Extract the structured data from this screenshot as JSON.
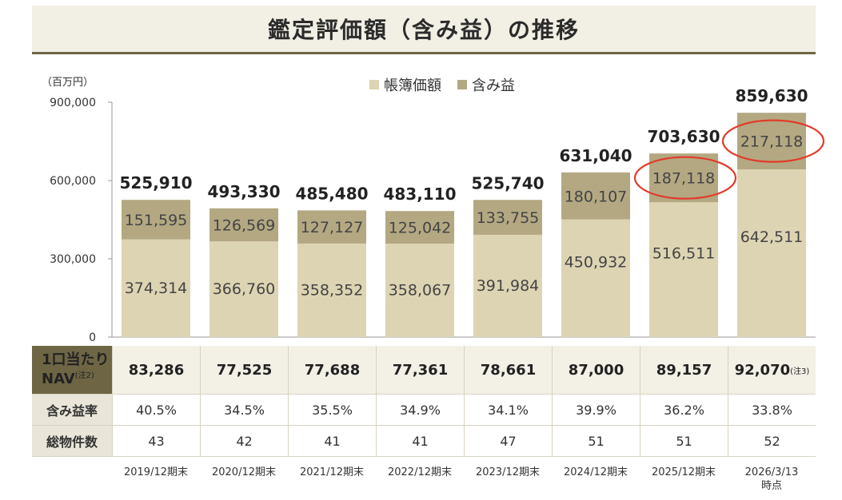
{
  "page_title": "鑑定評価額（含み益）の推移",
  "chart_data": {
    "type": "bar",
    "stacked": true,
    "title": "鑑定評価額（含み益）の推移",
    "unit_label": "（百万円）",
    "categories": [
      "2019/12期末",
      "2020/12期末",
      "2021/12期末",
      "2022/12期末",
      "2023/12期末",
      "2024/12期末",
      "2025/12期末",
      "2026/3/13時点"
    ],
    "category_lines": [
      [
        "2019/12期末"
      ],
      [
        "2020/12期末"
      ],
      [
        "2021/12期末"
      ],
      [
        "2022/12期末"
      ],
      [
        "2023/12期末"
      ],
      [
        "2024/12期末"
      ],
      [
        "2025/12期末"
      ],
      [
        "2026/3/13",
        "時点"
      ]
    ],
    "series": [
      {
        "name": "帳簿価額",
        "color": "#ddd4b3",
        "values": [
          374314,
          366760,
          358352,
          358067,
          391984,
          450932,
          516511,
          642511
        ]
      },
      {
        "name": "含み益",
        "color": "#b3a882",
        "values": [
          151595,
          126569,
          127127,
          125042,
          133755,
          180107,
          187118,
          217118
        ]
      }
    ],
    "totals": [
      525910,
      493330,
      485480,
      483110,
      525740,
      631040,
      703630,
      859630
    ],
    "ylim": [
      0,
      900000
    ],
    "yticks": [
      0,
      300000,
      600000,
      900000
    ],
    "ytick_labels": [
      "0",
      "300,000",
      "600,000",
      "900,000"
    ],
    "circled_values": [
      "187,118",
      "217,118"
    ],
    "annotation_color": "#e23b2a",
    "legend_position": "top-center"
  },
  "table": {
    "nav_label_line1": "1口当たり",
    "nav_label_line2": "NAV",
    "nav_label_note": "(注2)",
    "nav_values": [
      "83,286",
      "77,525",
      "77,688",
      "77,361",
      "78,661",
      "87,000",
      "89,157",
      "92,070"
    ],
    "nav_last_note": "(注3)",
    "unrealized_rate_label": "含み益率",
    "unrealized_rate_values": [
      "40.5%",
      "34.5%",
      "35.5%",
      "34.9%",
      "34.1%",
      "39.9%",
      "36.2%",
      "33.8%"
    ],
    "property_count_label": "総物件数",
    "property_count_values": [
      "43",
      "42",
      "41",
      "41",
      "47",
      "51",
      "51",
      "52"
    ]
  },
  "colors": {
    "header_dark": "#6e6545",
    "book_value": "#ddd4b3",
    "unrealized_gain": "#b3a882",
    "title_bg": "#f2efe4"
  }
}
